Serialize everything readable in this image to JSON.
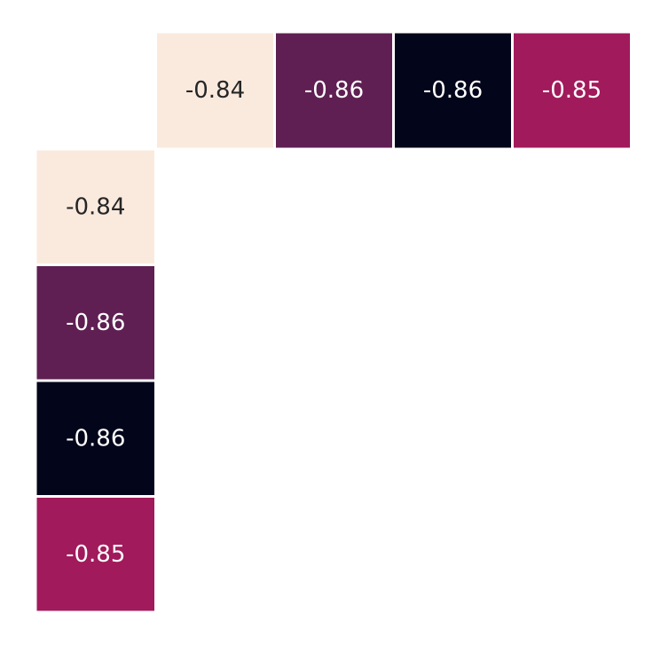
{
  "chart_data": {
    "type": "heatmap",
    "title": "",
    "xlabel": "",
    "ylabel": "",
    "cells": [
      {
        "row": 0,
        "col": 1,
        "value": -0.84,
        "label": "-0.84",
        "color": "#faeade",
        "text_color": "#262626"
      },
      {
        "row": 0,
        "col": 2,
        "value": -0.86,
        "label": "-0.86",
        "color": "#5f1f52",
        "text_color": "#ffffff"
      },
      {
        "row": 0,
        "col": 3,
        "value": -0.86,
        "label": "-0.86",
        "color": "#03051a",
        "text_color": "#ffffff"
      },
      {
        "row": 0,
        "col": 4,
        "value": -0.85,
        "label": "-0.85",
        "color": "#a11a5b",
        "text_color": "#ffffff"
      },
      {
        "row": 1,
        "col": 0,
        "value": -0.84,
        "label": "-0.84",
        "color": "#faeade",
        "text_color": "#262626"
      },
      {
        "row": 2,
        "col": 0,
        "value": -0.86,
        "label": "-0.86",
        "color": "#5f1f52",
        "text_color": "#ffffff"
      },
      {
        "row": 3,
        "col": 0,
        "value": -0.86,
        "label": "-0.86",
        "color": "#03051a",
        "text_color": "#ffffff"
      },
      {
        "row": 4,
        "col": 0,
        "value": -0.85,
        "label": "-0.85",
        "color": "#a11a5b",
        "text_color": "#ffffff"
      }
    ],
    "grid": false,
    "legend": "none"
  }
}
